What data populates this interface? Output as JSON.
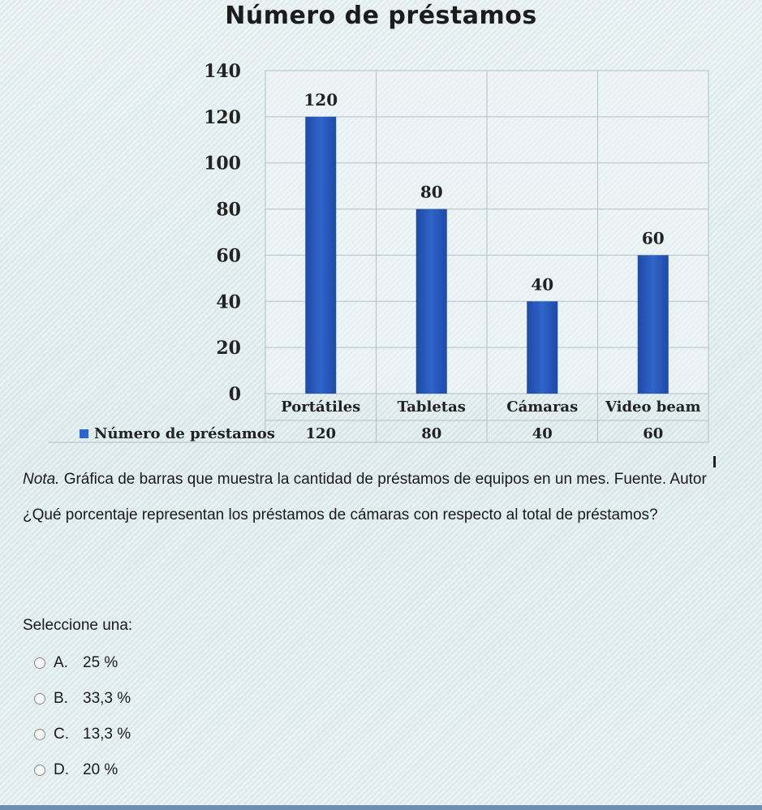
{
  "chart_data": {
    "type": "bar",
    "title": "Número de préstamos",
    "categories": [
      "Portátiles",
      "Tabletas",
      "Cámaras",
      "Video beam"
    ],
    "series": [
      {
        "name": "Número de préstamos",
        "values": [
          120,
          80,
          40,
          60
        ]
      }
    ],
    "ylim": [
      0,
      140
    ],
    "yticks": [
      0,
      20,
      40,
      60,
      80,
      100,
      120,
      140
    ],
    "grid": true,
    "data_labels": true,
    "legend": "data-table-below",
    "colors": {
      "bar": "#2f64c8",
      "bar_dark": "#1f4aa8"
    }
  },
  "note": {
    "prefix": "Nota.",
    "text": " Gráfica de barras que muestra la cantidad de préstamos de equipos en un mes. Fuente. Autor"
  },
  "question": "¿Qué porcentaje representan los préstamos de cámaras con respecto al total de préstamos?",
  "prompt": "Seleccione una:",
  "options": [
    {
      "letter": "A.",
      "text": "25 %"
    },
    {
      "letter": "B.",
      "text": "33,3 %"
    },
    {
      "letter": "C.",
      "text": "13,3 %"
    },
    {
      "letter": "D.",
      "text": "20 %"
    }
  ]
}
